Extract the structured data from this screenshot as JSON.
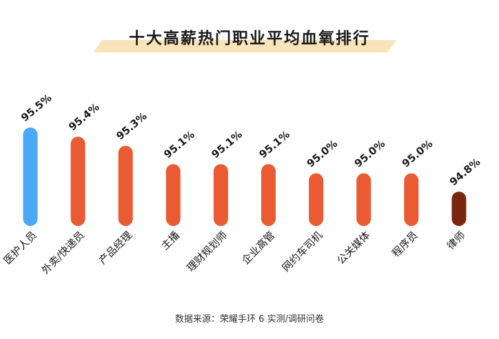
{
  "chart_data": {
    "type": "bar",
    "title": "十大高薪热门职业平均血氧排行",
    "categories": [
      "医护人员",
      "外卖/快递员",
      "产品经理",
      "主播",
      "理财规划师",
      "企业高管",
      "网约车司机",
      "公关媒体",
      "程序员",
      "律师"
    ],
    "values": [
      95.5,
      95.4,
      95.3,
      95.1,
      95.1,
      95.1,
      95.0,
      95.0,
      95.0,
      94.8
    ],
    "value_labels": [
      "95.5%",
      "95.4%",
      "95.3%",
      "95.1%",
      "95.1%",
      "95.1%",
      "95.0%",
      "95.0%",
      "95.0%",
      "94.8%"
    ],
    "colors": [
      "#4aa8f5",
      "#ea5a33",
      "#ea5a33",
      "#ea5a33",
      "#ea5a33",
      "#ea5a33",
      "#ea5a33",
      "#ea5a33",
      "#ea5a33",
      "#7a2510"
    ],
    "xlabel": "",
    "ylabel": "",
    "grid": false,
    "source": "数据来源：荣耀手环 6 实测/调研问卷"
  }
}
